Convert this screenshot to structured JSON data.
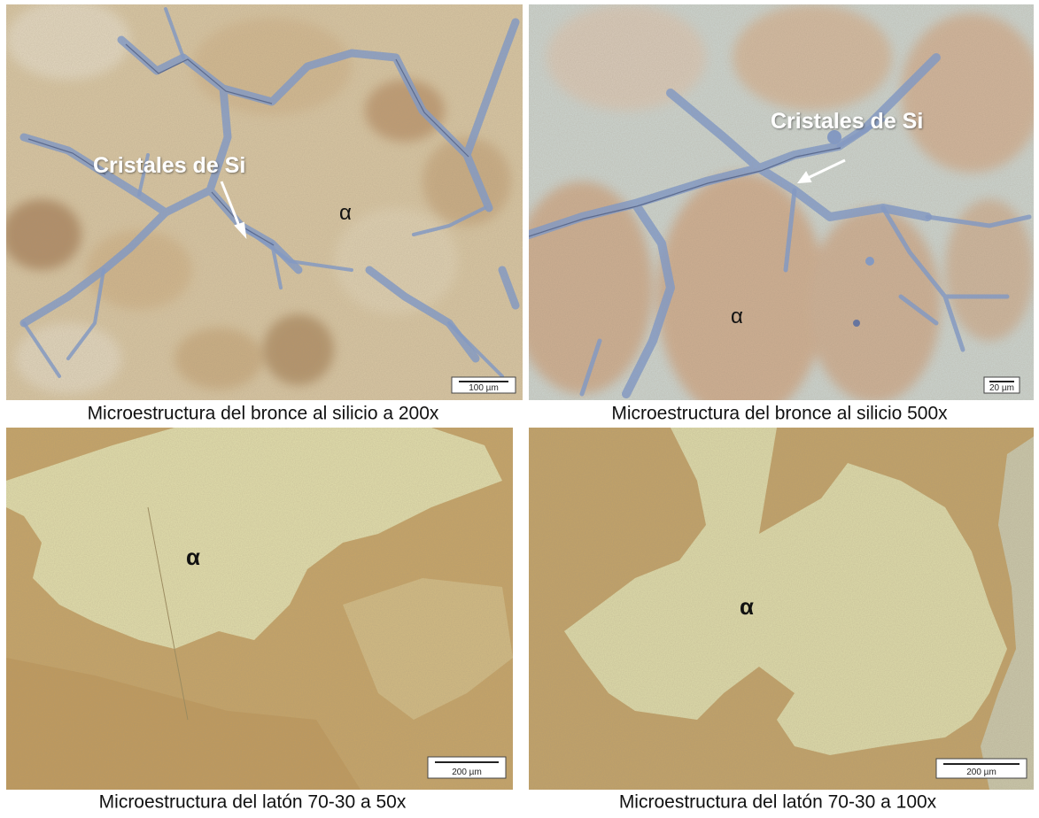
{
  "panels": [
    {
      "caption": "Microestructura del bronce al silicio a 200x",
      "labels": [
        "Cristales de Si",
        "α"
      ],
      "scale_bar": "100 µm"
    },
    {
      "caption": "Microestructura del bronce al silicio 500x",
      "labels": [
        "Cristales de Si",
        "α"
      ],
      "scale_bar": "20 µm"
    },
    {
      "caption": "Microestructura del latón 70-30 a 50x",
      "labels": [
        "α"
      ],
      "scale_bar": "200 µm"
    },
    {
      "caption": "Microestructura del latón 70-30 a 100x",
      "labels": [
        "α"
      ],
      "scale_bar": "200 µm"
    }
  ]
}
